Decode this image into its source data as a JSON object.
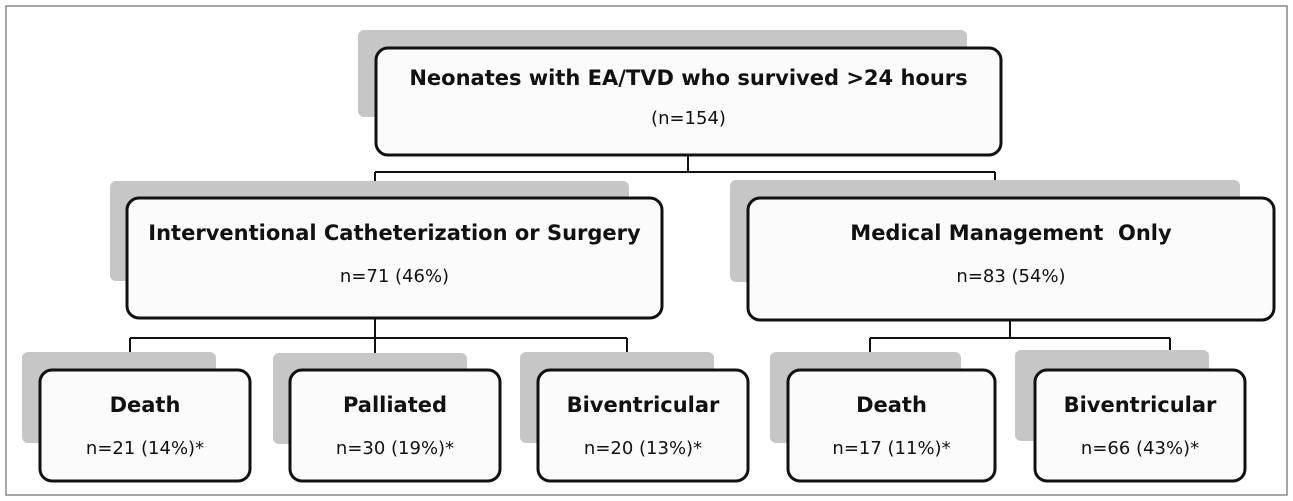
{
  "nodes": [
    {
      "label": "Neonates with EA/TVD who survived >24 hours",
      "count": "(n=154)"
    },
    {
      "label": "Interventional Catheterization or Surgery",
      "count": "n=71 (46%)"
    },
    {
      "label": "Medical Management  Only",
      "count": "n=83 (54%)"
    },
    {
      "label": "Death",
      "count": "n=21 (14%)*"
    },
    {
      "label": "Palliated",
      "count": "n=30 (19%)*"
    },
    {
      "label": "Biventricular",
      "count": "n=20 (13%)*"
    },
    {
      "label": "Death",
      "count": "n=17 (11%)*"
    },
    {
      "label": "Biventricular",
      "count": "n=66 (43%)*"
    }
  ]
}
